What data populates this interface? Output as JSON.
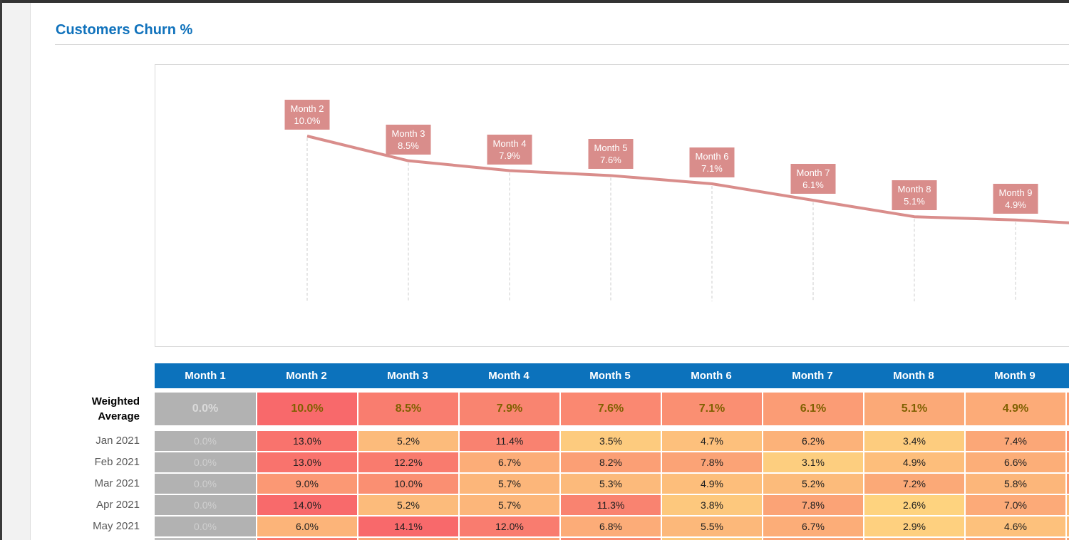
{
  "page": {
    "title": "Customers Churn %"
  },
  "colors": {
    "top_band": "#333333",
    "left_edge": "#3a3a3a",
    "left_strip": "#f2f2f2",
    "title_color": "#1072bc",
    "rule_color": "#d9d9d9",
    "chart_border": "#d9d9d9",
    "header_bg": "#0c72bc",
    "header_text": "#ffffff",
    "gray_cell_bg": "#b2b2b2",
    "gray_cell_text_wa": "#dadada",
    "gray_cell_text": "#cfcfcf",
    "wa_value_text": "#7f6000",
    "data_value_text": "#202020",
    "row_label_text": "#595959",
    "heat_min_color": "#FFEB84",
    "heat_max_color": "#F8696B",
    "wa_scale_max": 10.0,
    "data_scale_max": 14.1,
    "dropline": "#cccccc",
    "header_sliver": "#0c72bc",
    "wa_sliver": "#FB9E74",
    "row_slivers": [
      "#FA9070",
      "#FBA376",
      "#FB9D74",
      "#FCC07C",
      "#FCBD7B"
    ],
    "partial_row_cells": [
      "#BFBFBF",
      "#F9796E",
      "#FBA577",
      "#FBA477",
      "#FA8B71",
      "#FDCA7E",
      "#FBA577",
      "#FCB57A",
      "#FBA577"
    ],
    "partial_row_sliver": "#FBA577"
  },
  "chart_data": {
    "type": "line",
    "title": "Customers Churn %",
    "categories": [
      "Month 2",
      "Month 3",
      "Month 4",
      "Month 5",
      "Month 6",
      "Month 7",
      "Month 8",
      "Month 9"
    ],
    "values": [
      10.0,
      8.5,
      7.9,
      7.6,
      7.1,
      6.1,
      5.1,
      4.9
    ],
    "value_format": "percent_1dp",
    "data_labels": true,
    "legend": "none",
    "grid": "dashed droplines under each point, no visible axes",
    "line_color": "#D98D8B",
    "label_bg": "#D98D8B",
    "label_text_color": "#FFFFFF",
    "continues_offscreen_right": true
  },
  "table": {
    "columns": [
      "Month 1",
      "Month 2",
      "Month 3",
      "Month 4",
      "Month 5",
      "Month 6",
      "Month 7",
      "Month 8",
      "Month 9"
    ],
    "weighted_row": {
      "label": "Weighted Average",
      "label_lines": [
        "Weighted",
        "Average"
      ],
      "values": [
        0.0,
        10.0,
        8.5,
        7.9,
        7.6,
        7.1,
        6.1,
        5.1,
        4.9
      ]
    },
    "rows": [
      {
        "label": "Jan 2021",
        "values": [
          0.0,
          13.0,
          5.2,
          11.4,
          3.5,
          4.7,
          6.2,
          3.4,
          7.4
        ]
      },
      {
        "label": "Feb 2021",
        "values": [
          0.0,
          13.0,
          12.2,
          6.7,
          8.2,
          7.8,
          3.1,
          4.9,
          6.6
        ]
      },
      {
        "label": "Mar 2021",
        "values": [
          0.0,
          9.0,
          10.0,
          5.7,
          5.3,
          4.9,
          5.2,
          7.2,
          5.8
        ]
      },
      {
        "label": "Apr 2021",
        "values": [
          0.0,
          14.0,
          5.2,
          5.7,
          11.3,
          3.8,
          7.8,
          2.6,
          7.0
        ]
      },
      {
        "label": "May 2021",
        "values": [
          0.0,
          6.0,
          14.1,
          12.0,
          6.8,
          5.5,
          6.7,
          2.9,
          4.6
        ]
      }
    ]
  }
}
